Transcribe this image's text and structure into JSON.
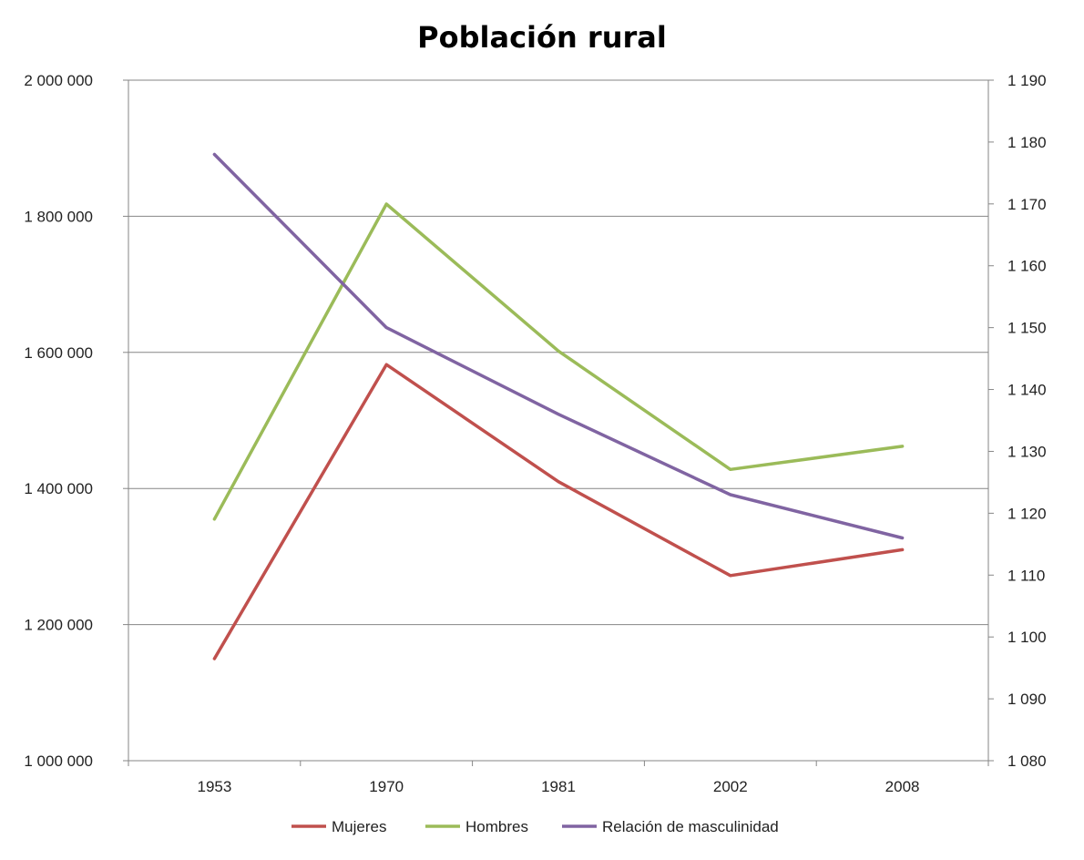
{
  "chart_data": {
    "type": "line",
    "title": "Población rural",
    "categories": [
      "1953",
      "1970",
      "1981",
      "2002",
      "2008"
    ],
    "y_left": {
      "min": 1000000,
      "max": 2000000,
      "step": 200000,
      "tick_labels": [
        "1 000 000",
        "1 200 000",
        "1 400 000",
        "1 600 000",
        "1 800 000",
        "2 000 000"
      ]
    },
    "y_right": {
      "min": 1080,
      "max": 1190,
      "step": 10,
      "tick_labels": [
        "1 080",
        "1 090",
        "1 100",
        "1 110",
        "1 120",
        "1 130",
        "1 140",
        "1 150",
        "1 160",
        "1 170",
        "1 180",
        "1 190"
      ]
    },
    "grid": true,
    "legend_position": "bottom",
    "series": [
      {
        "name": "Mujeres",
        "axis": "left",
        "color": "#C0504D",
        "values": [
          1150000,
          1582000,
          1410000,
          1272000,
          1310000
        ]
      },
      {
        "name": "Hombres",
        "axis": "left",
        "color": "#9BBB59",
        "values": [
          1355000,
          1818000,
          1602000,
          1428000,
          1462000
        ]
      },
      {
        "name": "Relación de masculinidad",
        "axis": "right",
        "color": "#8064A2",
        "values": [
          1178,
          1150,
          1136,
          1123,
          1116
        ]
      }
    ]
  }
}
